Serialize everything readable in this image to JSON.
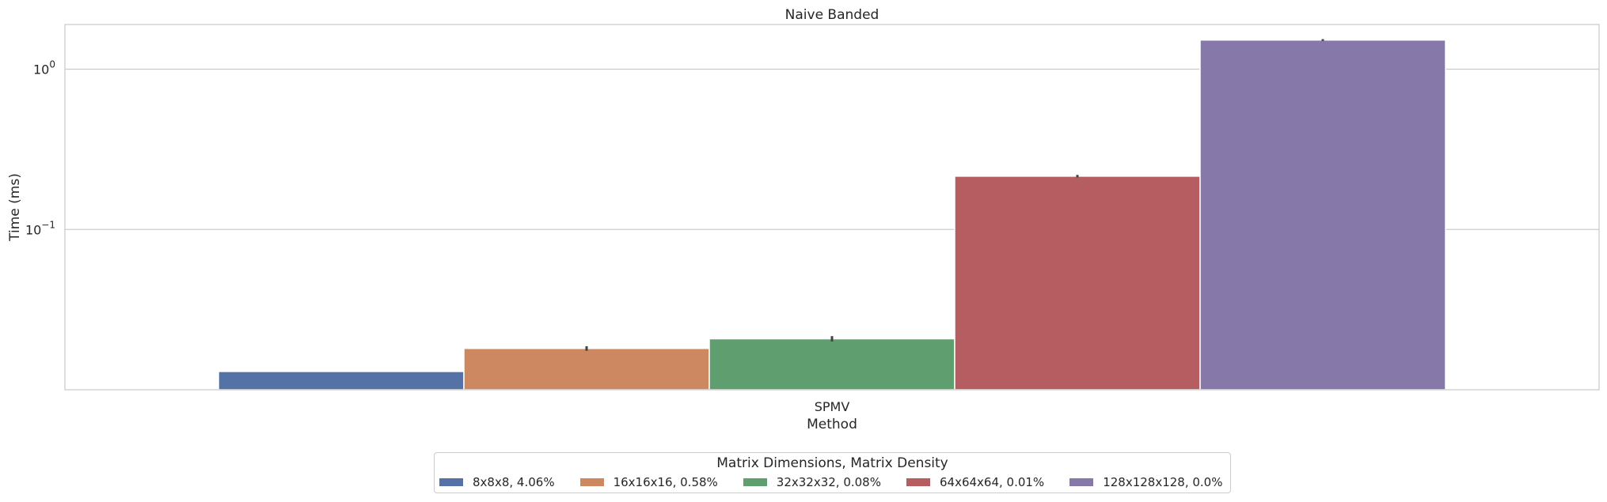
{
  "chart_data": {
    "type": "bar",
    "title": "Naive Banded",
    "xlabel": "Method",
    "ylabel": "Time (ms)",
    "yscale": "log",
    "ylim": [
      0.01,
      1.9
    ],
    "grid": true,
    "categories": [
      "SPMV"
    ],
    "legend_title": "Matrix Dimensions, Matrix Density",
    "legend_placement": "bottom-center, below axes",
    "yticks": [
      {
        "value": 1.0,
        "label": "10^0"
      },
      {
        "value": 0.1,
        "label": "10^-1"
      }
    ],
    "series": [
      {
        "name": "8x8x8, 4.06%",
        "values": [
          0.013
        ],
        "error": [
          0.0
        ],
        "color": "#5572a6"
      },
      {
        "name": "16x16x16, 0.58%",
        "values": [
          0.0181
        ],
        "error": [
          0.0006
        ],
        "color": "#cd8761"
      },
      {
        "name": "32x32x32, 0.08%",
        "values": [
          0.0208
        ],
        "error": [
          0.0008
        ],
        "color": "#5f9e6e"
      },
      {
        "name": "64x64x64, 0.01%",
        "values": [
          0.215
        ],
        "error": [
          0.004
        ],
        "color": "#b55d60"
      },
      {
        "name": "128x128x128, 0.0%",
        "values": [
          1.52
        ],
        "error": [
          0.02
        ],
        "color": "#8679aa"
      }
    ]
  }
}
